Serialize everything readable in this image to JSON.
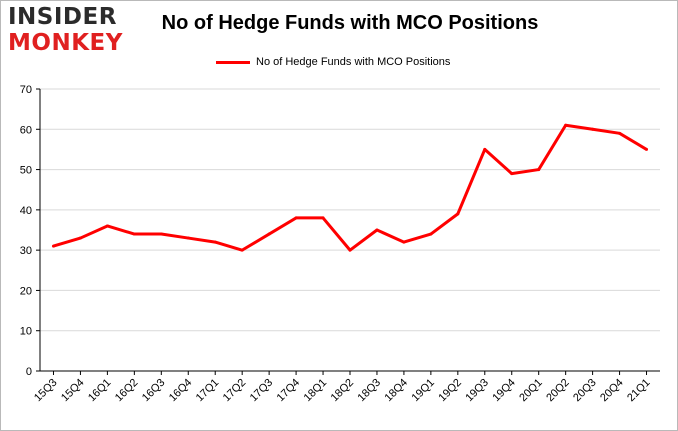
{
  "logo": {
    "line1": "INSIDER",
    "line2": "MONKEY"
  },
  "colors": {
    "series": "#ff0000",
    "grid": "#d9d9d9",
    "axis": "#000000",
    "logo_dark": "#2b2b2b",
    "logo_accent": "#e02020"
  },
  "chart_data": {
    "type": "line",
    "title": "No of Hedge Funds with MCO Positions",
    "xlabel": "",
    "ylabel": "",
    "ylim": [
      0,
      70
    ],
    "yticks": [
      0,
      10,
      20,
      30,
      40,
      50,
      60,
      70
    ],
    "grid": "horizontal",
    "legend_position": "top-center",
    "categories": [
      "15Q3",
      "15Q4",
      "16Q1",
      "16Q2",
      "16Q3",
      "16Q4",
      "17Q1",
      "17Q2",
      "17Q3",
      "17Q4",
      "18Q1",
      "18Q2",
      "18Q3",
      "18Q4",
      "19Q1",
      "19Q2",
      "19Q3",
      "19Q4",
      "20Q1",
      "20Q2",
      "20Q3",
      "20Q4",
      "21Q1"
    ],
    "series": [
      {
        "name": "No of Hedge Funds with MCO Positions",
        "values": [
          31,
          33,
          36,
          34,
          34,
          33,
          32,
          30,
          34,
          38,
          38,
          30,
          35,
          32,
          34,
          39,
          55,
          49,
          50,
          61,
          60,
          59,
          55
        ]
      }
    ]
  }
}
